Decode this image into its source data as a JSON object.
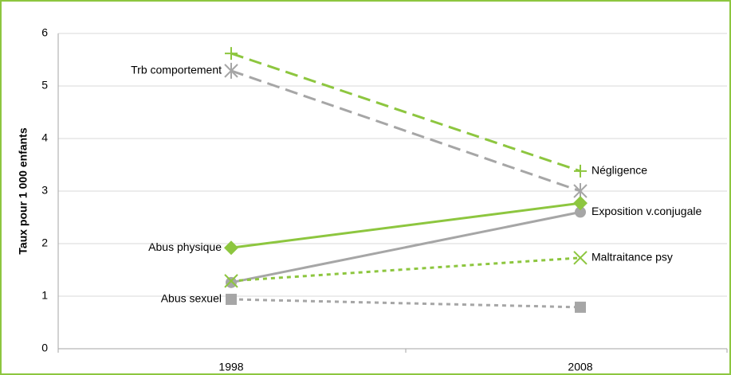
{
  "chart_data": {
    "type": "line",
    "y_label": "Taux pour 1 000 enfants",
    "categories": [
      "1998",
      "2008"
    ],
    "series": [
      {
        "name": "Négligence",
        "color": "#8dc63f",
        "marker": "plus",
        "dash": "dashed",
        "values": [
          5.62,
          3.38
        ]
      },
      {
        "name": "Trb comportement",
        "color": "#a6a6a6",
        "marker": "star",
        "dash": "dashed",
        "values": [
          5.29,
          3.0
        ]
      },
      {
        "name": "Exposition v.conjugale",
        "color": "#a6a6a6",
        "marker": "circle",
        "dash": "solid",
        "values": [
          1.26,
          2.6
        ]
      },
      {
        "name": "Abus physique",
        "color": "#8dc63f",
        "marker": "diamond",
        "dash": "solid",
        "values": [
          1.92,
          2.77
        ]
      },
      {
        "name": "Maltraitance psy",
        "color": "#8dc63f",
        "marker": "x",
        "dash": "dotted",
        "values": [
          1.29,
          1.73
        ]
      },
      {
        "name": "Abus sexuel",
        "color": "#a6a6a6",
        "marker": "square",
        "dash": "dotted",
        "values": [
          0.94,
          0.79
        ]
      }
    ],
    "ylim": [
      0,
      6
    ],
    "yticks": [
      0,
      1,
      2,
      3,
      4,
      5,
      6
    ],
    "grid": true
  }
}
